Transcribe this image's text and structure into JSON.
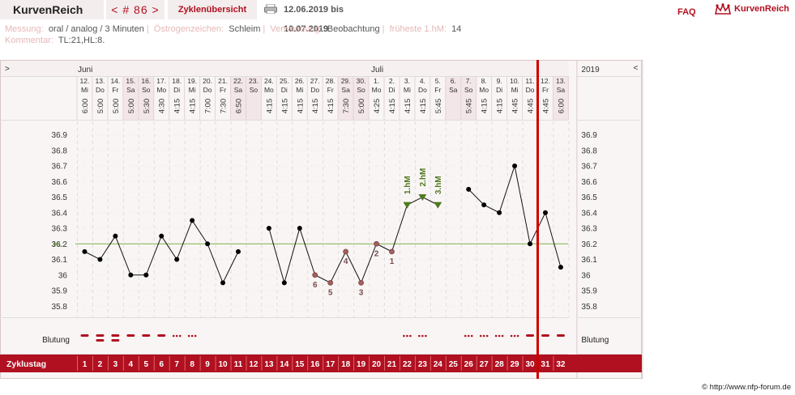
{
  "app": {
    "brand": "KurvenReich",
    "cycle_nav": "< # 86 >",
    "overview_label": "Zyklenübersicht",
    "date_range": "12.06.2019 bis 10.07.2019",
    "faq": "FAQ",
    "logo_text": "KurvenReich"
  },
  "meta": {
    "messung_label": "Messung:",
    "messung_value": "oral / analog / 3 Minuten",
    "oestrogen_label": "Östrogenzeichen:",
    "oestrogen_value": "Schleim",
    "verwendung_label": "Verwendung:",
    "verwendung_value": "Beobachtung",
    "fhm_label": "früheste 1.hM:",
    "fhm_value": "14",
    "kommentar_label": "Kommentar:",
    "kommentar_value": "TL:21,HL:8."
  },
  "header": {
    "left_arrow": ">",
    "right_arrow": "<",
    "month1": "Juni",
    "month2": "Juli",
    "year": "2019"
  },
  "chart_data": {
    "type": "line",
    "ylim": [
      35.7,
      36.95
    ],
    "yticks": [
      "36.9",
      "36.8",
      "36.7",
      "36.6",
      "36.5",
      "36.4",
      "36.3",
      "36.2",
      "36.1",
      "36",
      "35.9",
      "35.8"
    ],
    "hl_label": "HL:",
    "hl_value": 36.2,
    "days": [
      {
        "date": "12.",
        "wd": "Mi",
        "time": "6:00",
        "temp": 36.15,
        "cd": "1",
        "bl": "dash"
      },
      {
        "date": "13.",
        "wd": "Do",
        "time": "5:00",
        "temp": 36.1,
        "cd": "2",
        "bl": "dash2"
      },
      {
        "date": "14.",
        "wd": "Fr",
        "time": "5:00",
        "temp": 36.25,
        "cd": "3",
        "bl": "dash2"
      },
      {
        "date": "15.",
        "wd": "Sa",
        "time": "5:00",
        "temp": 36.0,
        "cd": "4",
        "bl": "dash"
      },
      {
        "date": "16.",
        "wd": "So",
        "time": "5:30",
        "temp": 36.0,
        "cd": "5",
        "bl": "dash"
      },
      {
        "date": "17.",
        "wd": "Mo",
        "time": "4:30",
        "temp": 36.25,
        "cd": "6",
        "bl": "dash"
      },
      {
        "date": "18.",
        "wd": "Di",
        "time": "4:15",
        "temp": 36.1,
        "cd": "7",
        "bl": "dots"
      },
      {
        "date": "19.",
        "wd": "Mi",
        "time": "4:15",
        "temp": 36.35,
        "cd": "8",
        "bl": "dots"
      },
      {
        "date": "20.",
        "wd": "Do",
        "time": "7:00",
        "temp": 36.2,
        "cd": "9",
        "bl": ""
      },
      {
        "date": "21.",
        "wd": "Fr",
        "time": "7:30",
        "temp": 35.95,
        "cd": "10",
        "bl": ""
      },
      {
        "date": "22.",
        "wd": "Sa",
        "time": "6:50",
        "temp": 36.15,
        "cd": "11",
        "bl": ""
      },
      {
        "date": "23.",
        "wd": "So",
        "time": "",
        "temp": null,
        "cd": "12",
        "bl": ""
      },
      {
        "date": "24.",
        "wd": "Mo",
        "time": "4:15",
        "temp": 36.3,
        "cd": "13",
        "bl": ""
      },
      {
        "date": "25.",
        "wd": "Di",
        "time": "4:15",
        "temp": 35.95,
        "cd": "14",
        "bl": ""
      },
      {
        "date": "26.",
        "wd": "Mi",
        "time": "4:15",
        "temp": 36.3,
        "cd": "15",
        "bl": ""
      },
      {
        "date": "27.",
        "wd": "Do",
        "time": "4:15",
        "temp": 36.0,
        "cd": "16",
        "bl": "",
        "lbl": "6",
        "open": true
      },
      {
        "date": "28.",
        "wd": "Fr",
        "time": "4:15",
        "temp": 35.95,
        "cd": "17",
        "bl": "",
        "lbl": "5",
        "open": true
      },
      {
        "date": "29.",
        "wd": "Sa",
        "time": "7:30",
        "temp": 36.15,
        "cd": "18",
        "bl": "",
        "lbl": "4",
        "open": true
      },
      {
        "date": "30.",
        "wd": "So",
        "time": "5:00",
        "temp": 35.95,
        "cd": "19",
        "bl": "",
        "lbl": "3",
        "open": true
      },
      {
        "date": "1.",
        "wd": "Mo",
        "time": "4:25",
        "temp": 36.2,
        "cd": "20",
        "bl": "",
        "lbl": "2",
        "open": true
      },
      {
        "date": "2.",
        "wd": "Di",
        "time": "4:15",
        "temp": 36.15,
        "cd": "21",
        "bl": "",
        "lbl": "1",
        "open": true
      },
      {
        "date": "3.",
        "wd": "Mi",
        "time": "4:15",
        "temp": 36.45,
        "cd": "22",
        "bl": "dots",
        "hm": "1.hM"
      },
      {
        "date": "4.",
        "wd": "Do",
        "time": "4:15",
        "temp": 36.5,
        "cd": "23",
        "bl": "dots",
        "hm": "2.hM"
      },
      {
        "date": "5.",
        "wd": "Fr",
        "time": "5:45",
        "temp": 36.45,
        "cd": "24",
        "bl": "",
        "hm": "3.hM"
      },
      {
        "date": "6.",
        "wd": "Sa",
        "time": "",
        "temp": null,
        "cd": "25",
        "bl": ""
      },
      {
        "date": "7.",
        "wd": "So",
        "time": "5:45",
        "temp": 36.55,
        "cd": "26",
        "bl": "dots"
      },
      {
        "date": "8.",
        "wd": "Mo",
        "time": "4:15",
        "temp": 36.45,
        "cd": "27",
        "bl": "dots"
      },
      {
        "date": "9.",
        "wd": "Di",
        "time": "4:15",
        "temp": 36.4,
        "cd": "28",
        "bl": "dots"
      },
      {
        "date": "10.",
        "wd": "Mi",
        "time": "4:45",
        "temp": 36.7,
        "cd": "29",
        "bl": "dots"
      },
      {
        "date": "11.",
        "wd": "Do",
        "time": "4:45",
        "temp": 36.2,
        "cd": "30",
        "bl": "dash"
      },
      {
        "date": "12.",
        "wd": "Fr",
        "time": "4:45",
        "temp": 36.4,
        "cd": "31",
        "bl": "dash"
      },
      {
        "date": "13.",
        "wd": "Sa",
        "time": "6:00",
        "temp": 36.05,
        "cd": "32",
        "bl": "dash"
      }
    ],
    "shaded_days": [
      3,
      4,
      10,
      11,
      17,
      18,
      24,
      25,
      31
    ],
    "today_index": 29,
    "blutung_label": "Blutung",
    "zyklustag_label": "Zyklustag"
  },
  "footer": {
    "copyright": "© http://www.nfp-forum.de"
  },
  "colors": {
    "accent": "#b01020",
    "shade": "#f3e6e8",
    "hl_line": "#7fb24a",
    "hm_green": "#4f7a20"
  }
}
